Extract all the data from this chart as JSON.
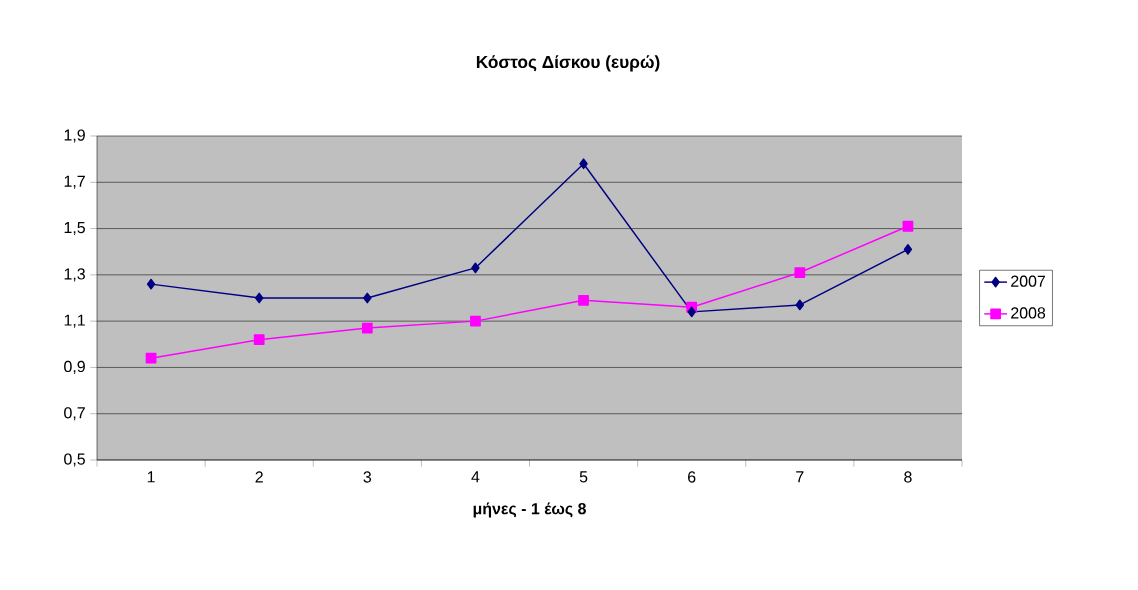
{
  "chart_data": {
    "type": "line",
    "title": "Κόστος Δίσκου (ευρώ)",
    "xlabel": "μήνες - 1 έως 8",
    "categories": [
      "1",
      "2",
      "3",
      "4",
      "5",
      "6",
      "7",
      "8"
    ],
    "series": [
      {
        "name": "2007",
        "color": "#000080",
        "marker": "diamond",
        "values": [
          1.26,
          1.2,
          1.2,
          1.33,
          1.78,
          1.14,
          1.17,
          1.41
        ]
      },
      {
        "name": "2008",
        "color": "#ff00ff",
        "marker": "square",
        "values": [
          0.94,
          1.02,
          1.07,
          1.1,
          1.19,
          1.16,
          1.31,
          1.51
        ]
      }
    ],
    "ylim": [
      0.5,
      1.9
    ],
    "yticks": [
      {
        "value": 0.5,
        "label": "0,5"
      },
      {
        "value": 0.7,
        "label": "0,7"
      },
      {
        "value": 0.9,
        "label": "0,9"
      },
      {
        "value": 1.1,
        "label": "1,1"
      },
      {
        "value": 1.3,
        "label": "1,3"
      },
      {
        "value": 1.5,
        "label": "1,5"
      },
      {
        "value": 1.7,
        "label": "1,7"
      },
      {
        "value": 1.9,
        "label": "1,9"
      }
    ],
    "grid": "y",
    "legend": "right",
    "line_style": "solid"
  }
}
